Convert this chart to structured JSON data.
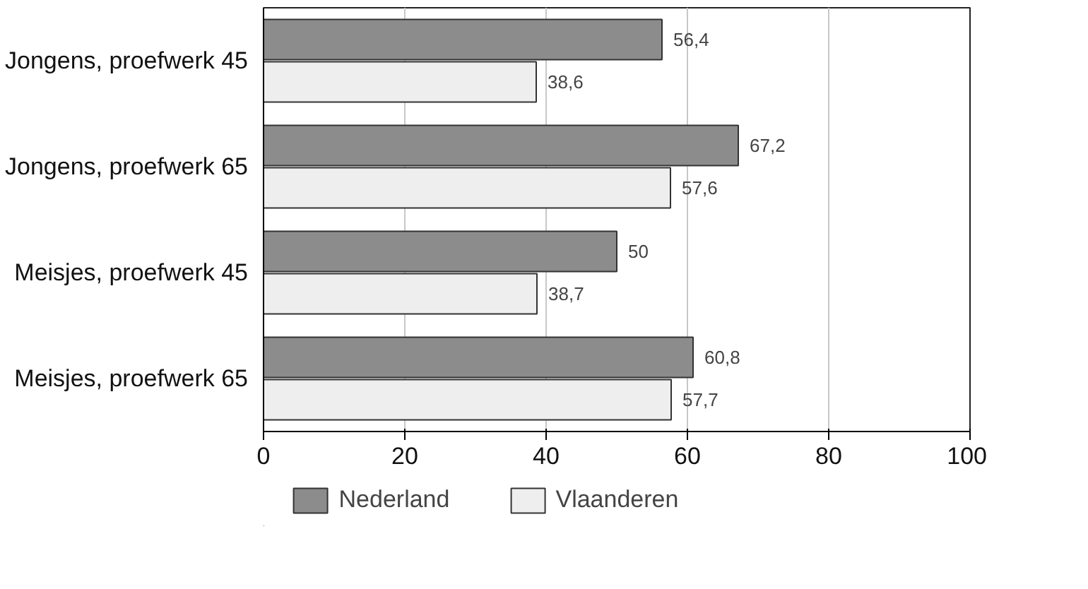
{
  "chart_data": {
    "type": "bar",
    "orientation": "horizontal",
    "categories": [
      "Jongens, proefwerk 45",
      "Jongens, proefwerk 65",
      "Meisjes, proefwerk 45",
      "Meisjes, proefwerk 65"
    ],
    "series": [
      {
        "name": "Nederland",
        "color": "#8c8c8c",
        "values": [
          56.4,
          67.2,
          50,
          60.8
        ],
        "value_labels": [
          "56,4",
          "67,2",
          "50",
          "60,8"
        ]
      },
      {
        "name": "Vlaanderen",
        "color": "#eeeeee",
        "values": [
          38.6,
          57.6,
          38.7,
          57.7
        ],
        "value_labels": [
          "38,6",
          "57,6",
          "38,7",
          "57,7"
        ]
      }
    ],
    "xlim": [
      0,
      100
    ],
    "xticks": [
      0,
      20,
      40,
      60,
      80,
      100
    ],
    "grid": "x",
    "legend": "bottom"
  }
}
